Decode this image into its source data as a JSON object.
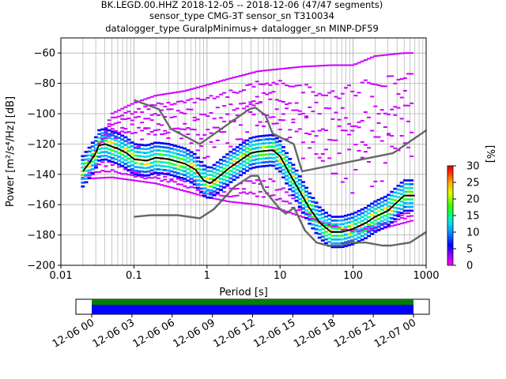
{
  "title_lines": [
    "BK.LEGD.00.HHZ   2018-12-05 -- 2018-12-06  (47/47 segments)",
    "sensor_type CMG-3T sensor_sn T310034",
    "datalogger_type GuralpMinimus+ datalogger_sn MINP-DF59"
  ],
  "chart_data": {
    "type": "heatmap",
    "title": "BK.LEGD.00.HHZ   2018-12-05 -- 2018-12-06  (47/47 segments)",
    "xlabel": "Period [s]",
    "ylabel": "Power [m²/s⁴/Hz] [dB]",
    "x_scale": "log",
    "xlim": [
      0.01,
      1000
    ],
    "ylim": [
      -200,
      -50
    ],
    "x_tick_labels": [
      "0.01",
      "0.1",
      "1",
      "10",
      "100",
      "1000"
    ],
    "x_ticks": [
      0.01,
      0.1,
      1,
      10,
      100,
      1000
    ],
    "y_tick_labels": [
      "−60",
      "−80",
      "−100",
      "−120",
      "−140",
      "−160",
      "−180",
      "−200"
    ],
    "y_ticks": [
      -60,
      -80,
      -100,
      -120,
      -140,
      -160,
      -180,
      -200
    ],
    "grid": true,
    "colorbar": {
      "label": "[%]",
      "range": [
        0,
        30
      ],
      "tick_labels": [
        "0",
        "5",
        "10",
        "15",
        "20",
        "25",
        "30"
      ],
      "ticks": [
        0,
        5,
        10,
        15,
        20,
        25,
        30
      ]
    },
    "series": [
      {
        "name": "",
        "color": "#000000",
        "points": [
          [
            0.02,
            -138
          ],
          [
            0.025,
            -132
          ],
          [
            0.03,
            -126
          ],
          [
            0.033,
            -121
          ],
          [
            0.04,
            -120
          ],
          [
            0.06,
            -123
          ],
          [
            0.08,
            -126
          ],
          [
            0.1,
            -130
          ],
          [
            0.15,
            -131
          ],
          [
            0.2,
            -129
          ],
          [
            0.3,
            -130
          ],
          [
            0.5,
            -133
          ],
          [
            0.7,
            -137
          ],
          [
            0.9,
            -144
          ],
          [
            1.1,
            -146
          ],
          [
            1.5,
            -141
          ],
          [
            2,
            -136
          ],
          [
            3,
            -130
          ],
          [
            4,
            -126
          ],
          [
            5,
            -125
          ],
          [
            8,
            -124
          ],
          [
            10,
            -128
          ],
          [
            13,
            -138
          ],
          [
            18,
            -150
          ],
          [
            25,
            -162
          ],
          [
            35,
            -172
          ],
          [
            50,
            -178
          ],
          [
            70,
            -178
          ],
          [
            100,
            -176
          ],
          [
            150,
            -172
          ],
          [
            200,
            -168
          ],
          [
            300,
            -164
          ],
          [
            500,
            -154
          ],
          [
            700,
            -154
          ]
        ]
      },
      {
        "name": "",
        "color": "#666666",
        "points": [
          [
            0.1,
            -91
          ],
          [
            0.22,
            -97
          ],
          [
            0.32,
            -110
          ],
          [
            0.8,
            -120
          ],
          [
            3.8,
            -97
          ],
          [
            4.6,
            -96
          ],
          [
            6.3,
            -101
          ],
          [
            7.9,
            -113
          ],
          [
            15.4,
            -120
          ],
          [
            20,
            -138
          ],
          [
            354,
            -126
          ],
          [
            1000,
            -111
          ]
        ]
      },
      {
        "name": "",
        "color": "#666666",
        "points": [
          [
            0.1,
            -168
          ],
          [
            0.17,
            -167
          ],
          [
            0.4,
            -167
          ],
          [
            0.8,
            -169
          ],
          [
            1.24,
            -163
          ],
          [
            2.4,
            -148
          ],
          [
            4,
            -141
          ],
          [
            5,
            -141
          ],
          [
            6,
            -150
          ],
          [
            10,
            -163
          ],
          [
            12,
            -166
          ],
          [
            15.6,
            -162
          ],
          [
            21.9,
            -177
          ],
          [
            31.6,
            -185
          ],
          [
            45,
            -187
          ],
          [
            70,
            -187
          ],
          [
            90,
            -185
          ],
          [
            150,
            -185
          ],
          [
            250,
            -187
          ],
          [
            330,
            -187
          ],
          [
            600,
            -185
          ],
          [
            1000,
            -178
          ]
        ]
      }
    ],
    "upper_band": {
      "color": "#cc00ff",
      "points": [
        [
          0.02,
          -138
        ],
        [
          0.03,
          -125
        ],
        [
          0.05,
          -100
        ],
        [
          0.1,
          -93
        ],
        [
          0.2,
          -88
        ],
        [
          0.5,
          -85
        ],
        [
          1,
          -81
        ],
        [
          2,
          -77
        ],
        [
          5,
          -72
        ],
        [
          20,
          -69
        ],
        [
          50,
          -68
        ],
        [
          100,
          -68
        ],
        [
          200,
          -62
        ],
        [
          500,
          -60
        ],
        [
          700,
          -60
        ]
      ]
    },
    "lower_band": {
      "color": "#cc00ff",
      "points": [
        [
          0.02,
          -143
        ],
        [
          0.05,
          -142
        ],
        [
          0.1,
          -144
        ],
        [
          0.2,
          -146
        ],
        [
          0.5,
          -151
        ],
        [
          1,
          -155
        ],
        [
          2,
          -158
        ],
        [
          5,
          -160
        ],
        [
          10,
          -163
        ],
        [
          20,
          -168
        ],
        [
          50,
          -173
        ],
        [
          100,
          -178
        ],
        [
          200,
          -177
        ],
        [
          500,
          -172
        ],
        [
          700,
          -170
        ]
      ]
    }
  },
  "time_axis": {
    "tick_labels": [
      "12-06 00",
      "12-06 03",
      "12-06 06",
      "12-06 09",
      "12-06 12",
      "12-06 15",
      "12-06 18",
      "12-06 21",
      "12-07 00"
    ],
    "coverage_colors": [
      "#008000",
      "#0000ff"
    ]
  }
}
